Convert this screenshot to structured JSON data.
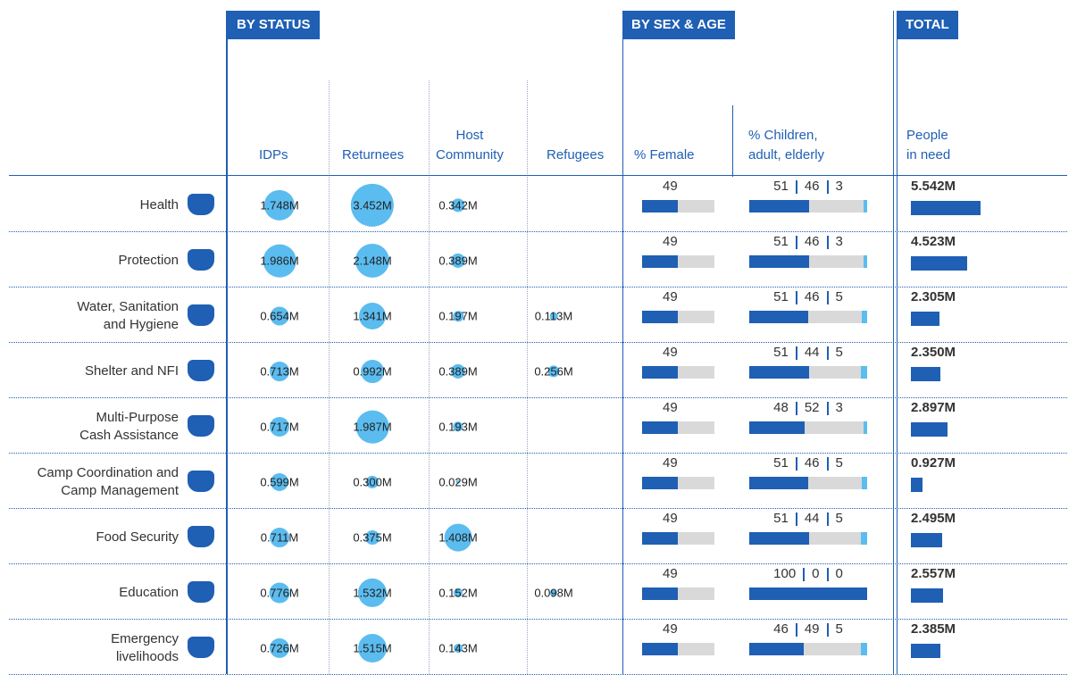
{
  "header": {
    "sections": [
      "BY STATUS",
      "BY SEX & AGE",
      "TOTAL"
    ],
    "columns": [
      "IDPs",
      "Returnees",
      "Host\nCommunity",
      "Refugees",
      "% Female",
      "% Children,\nadult, elderly",
      "People\nin need"
    ]
  },
  "table": {
    "rows": [
      {
        "label": "Health",
        "status": [
          {
            "value": 1.748,
            "label": "1.748M"
          },
          {
            "value": 3.452,
            "label": "3.452M"
          },
          {
            "value": 0.342,
            "label": "0.342M"
          },
          null
        ],
        "female": 49,
        "age": [
          51,
          46,
          3
        ],
        "total": {
          "value": 5.542,
          "label": "5.542M"
        }
      },
      {
        "label": "Protection",
        "status": [
          {
            "value": 1.986,
            "label": "1.986M"
          },
          {
            "value": 2.148,
            "label": "2.148M"
          },
          {
            "value": 0.389,
            "label": "0.389M"
          },
          null
        ],
        "female": 49,
        "age": [
          51,
          46,
          3
        ],
        "total": {
          "value": 4.523,
          "label": "4.523M"
        }
      },
      {
        "label": "Water, Sanitation\nand Hygiene",
        "status": [
          {
            "value": 0.654,
            "label": "0.654M"
          },
          {
            "value": 1.341,
            "label": "1.341M"
          },
          {
            "value": 0.197,
            "label": "0.197M"
          },
          {
            "value": 0.113,
            "label": "0.113M"
          }
        ],
        "female": 49,
        "age": [
          51,
          46,
          5
        ],
        "total": {
          "value": 2.305,
          "label": "2.305M"
        }
      },
      {
        "label": "Shelter and NFI",
        "status": [
          {
            "value": 0.713,
            "label": "0.713M"
          },
          {
            "value": 0.992,
            "label": "0.992M"
          },
          {
            "value": 0.389,
            "label": "0.389M"
          },
          {
            "value": 0.256,
            "label": "0.256M"
          }
        ],
        "female": 49,
        "age": [
          51,
          44,
          5
        ],
        "total": {
          "value": 2.35,
          "label": "2.350M"
        }
      },
      {
        "label": "Multi-Purpose\nCash Assistance",
        "status": [
          {
            "value": 0.717,
            "label": "0.717M"
          },
          {
            "value": 1.987,
            "label": "1.987M"
          },
          {
            "value": 0.193,
            "label": "0.193M"
          },
          null
        ],
        "female": 49,
        "age": [
          48,
          52,
          3
        ],
        "total": {
          "value": 2.897,
          "label": "2.897M"
        }
      },
      {
        "label": "Camp Coordination and\nCamp Management",
        "status": [
          {
            "value": 0.599,
            "label": "0.599M"
          },
          {
            "value": 0.3,
            "label": "0.300M"
          },
          {
            "value": 0.029,
            "label": "0.029M"
          },
          null
        ],
        "female": 49,
        "age": [
          51,
          46,
          5
        ],
        "total": {
          "value": 0.927,
          "label": "0.927M"
        }
      },
      {
        "label": "Food Security",
        "status": [
          {
            "value": 0.711,
            "label": "0.711M"
          },
          {
            "value": 0.375,
            "label": "0.375M"
          },
          {
            "value": 1.408,
            "label": "1.408M"
          },
          null
        ],
        "female": 49,
        "age": [
          51,
          44,
          5
        ],
        "total": {
          "value": 2.495,
          "label": "2.495M"
        }
      },
      {
        "label": "Education",
        "status": [
          {
            "value": 0.776,
            "label": "0.776M"
          },
          {
            "value": 1.532,
            "label": "1.532M"
          },
          {
            "value": 0.152,
            "label": "0.152M"
          },
          {
            "value": 0.098,
            "label": "0.098M"
          }
        ],
        "female": 49,
        "age": [
          100,
          0,
          0
        ],
        "total": {
          "value": 2.557,
          "label": "2.557M"
        }
      },
      {
        "label": "Emergency\nlivelihoods",
        "status": [
          {
            "value": 0.726,
            "label": "0.726M"
          },
          {
            "value": 1.515,
            "label": "1.515M"
          },
          {
            "value": 0.143,
            "label": "0.143M"
          },
          null
        ],
        "female": 49,
        "age": [
          46,
          49,
          5
        ],
        "total": {
          "value": 2.385,
          "label": "2.385M"
        }
      }
    ]
  }
}
